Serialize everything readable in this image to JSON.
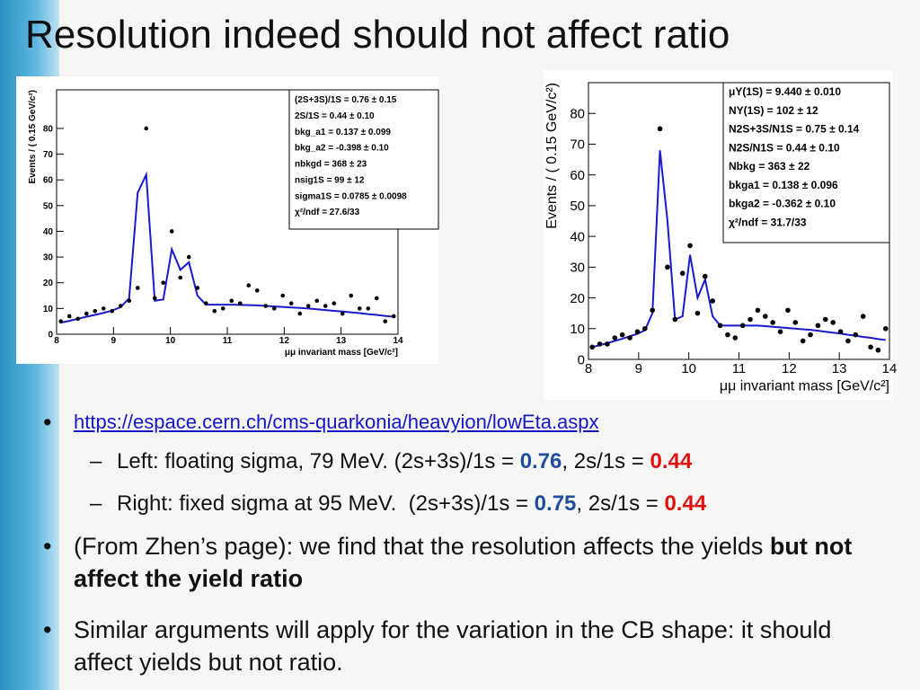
{
  "slide": {
    "title": "Resolution indeed should not affect ratio",
    "link": "https://espace.cern.ch/cms-quarkonia/heavyion/lowEta.aspx",
    "left": {
      "lead": "Left: floating sigma, 79 MeV. (2s+3s)/1s = ",
      "ratio1": "0.76",
      "mid": ", 2s/1s = ",
      "ratio2": "0.44"
    },
    "right": {
      "lead": "Right: fixed sigma at 95 MeV.  (2s+3s)/1s = ",
      "ratio1": "0.75",
      "mid": ", 2s/1s = ",
      "ratio2": "0.44"
    },
    "bullet2": {
      "lead": "(From Zhen’s page): we find that the resolution affects the yields ",
      "bold": "but not affect the yield ratio"
    },
    "bullet3": "Similar arguments will apply for the variation in the CB shape: it should affect yields but not ratio."
  },
  "chart_data": [
    {
      "type": "scatter",
      "xlabel": "μμ invariant mass [GeV/c²]",
      "ylabel": "Events / ( 0.15 GeV/c²)",
      "x": [
        8.075,
        8.225,
        8.375,
        8.525,
        8.675,
        8.825,
        8.975,
        9.125,
        9.275,
        9.425,
        9.575,
        9.725,
        9.875,
        10.025,
        10.175,
        10.325,
        10.475,
        10.625,
        10.775,
        10.925,
        11.075,
        11.225,
        11.375,
        11.525,
        11.675,
        11.825,
        11.975,
        12.125,
        12.275,
        12.425,
        12.575,
        12.725,
        12.875,
        13.025,
        13.175,
        13.325,
        13.475,
        13.625,
        13.775,
        13.925
      ],
      "series": [
        {
          "color": "#000000",
          "values": [
            5,
            7,
            6,
            8,
            9,
            10,
            9,
            11,
            13,
            18,
            80,
            14,
            20,
            40,
            22,
            30,
            18,
            12,
            9,
            10,
            13,
            12,
            19,
            17,
            11,
            10,
            15,
            12,
            8,
            11,
            13,
            11,
            12,
            8,
            15,
            10,
            10,
            14,
            5,
            7
          ]
        },
        {
          "color": "#1a1acc",
          "values": [
            4.5,
            5.2,
            6,
            6.8,
            7.5,
            8.3,
            9.2,
            10.5,
            14,
            55,
            62,
            13,
            13.5,
            33,
            25,
            28,
            15,
            11.5,
            11.5,
            11.5,
            11.5,
            11.4,
            11.3,
            11.2,
            11,
            10.8,
            10.6,
            10.4,
            10.2,
            10,
            9.7,
            9.4,
            9.1,
            8.8,
            8.5,
            8.2,
            7.8,
            7.5,
            7.1,
            6.8
          ]
        }
      ],
      "xlim": [
        8,
        14
      ],
      "xticks": [
        8,
        9,
        10,
        11,
        12,
        13,
        14
      ],
      "ylim": [
        0,
        95
      ],
      "yticks": [
        0,
        10,
        20,
        30,
        40,
        50,
        60,
        70,
        80
      ],
      "stats": [
        "(2S+3S)/1S =  0.76 ± 0.15",
        "2S/1S =  0.44 ± 0.10",
        "bkg_a1 =  0.137 ± 0.099",
        "bkg_a2 = -0.398 ± 0.10",
        "nbkgd =  368 ± 23",
        "nsig1S =  99 ± 12",
        "sigma1S =  0.0785 ± 0.0098",
        "χ²/ndf = 27.6/33"
      ]
    },
    {
      "type": "scatter",
      "xlabel": "μμ invariant mass [GeV/c²]",
      "ylabel": "Events / ( 0.15 GeV/c²)",
      "x": [
        8.075,
        8.225,
        8.375,
        8.525,
        8.675,
        8.825,
        8.975,
        9.125,
        9.275,
        9.425,
        9.575,
        9.725,
        9.875,
        10.025,
        10.175,
        10.325,
        10.475,
        10.625,
        10.775,
        10.925,
        11.075,
        11.225,
        11.375,
        11.525,
        11.675,
        11.825,
        11.975,
        12.125,
        12.275,
        12.425,
        12.575,
        12.725,
        12.875,
        13.025,
        13.175,
        13.325,
        13.475,
        13.625,
        13.775,
        13.925
      ],
      "series": [
        {
          "color": "#000000",
          "values": [
            4,
            5,
            5,
            7,
            8,
            7,
            9,
            10,
            16,
            75,
            30,
            13,
            28,
            37,
            15,
            27,
            19,
            11,
            8,
            7,
            11,
            13,
            16,
            14,
            12,
            9,
            16,
            12,
            6,
            8,
            11,
            13,
            12,
            9,
            6,
            8,
            14,
            4,
            3,
            10
          ]
        },
        {
          "color": "#1a1acc",
          "values": [
            4,
            4.6,
            5.3,
            6,
            6.7,
            7.5,
            8.3,
            9.5,
            15,
            68,
            45,
            13,
            14,
            34,
            20,
            26,
            14,
            11,
            11,
            11,
            11,
            11,
            11,
            10.8,
            10.6,
            10.4,
            10.2,
            10,
            9.8,
            9.6,
            9.3,
            9,
            8.7,
            8.4,
            8,
            7.7,
            7.3,
            7,
            6.6,
            6.3
          ]
        }
      ],
      "xlim": [
        8,
        14
      ],
      "xticks": [
        8,
        9,
        10,
        11,
        12,
        13,
        14
      ],
      "ylim": [
        0,
        90
      ],
      "yticks": [
        0,
        10,
        20,
        30,
        40,
        50,
        60,
        70,
        80
      ],
      "stats": [
        "μΥ(1S) =  9.440 ± 0.010",
        "NΥ(1S) =  102 ± 12",
        "N2S+3S/N1S =  0.75 ± 0.14",
        "N2S/N1S =  0.44 ± 0.10",
        "Nbkg =  363 ± 22",
        "bkga1 =  0.138 ± 0.096",
        "bkga2 = -0.362 ± 0.10",
        "χ²/ndf = 31.7/33"
      ]
    }
  ]
}
